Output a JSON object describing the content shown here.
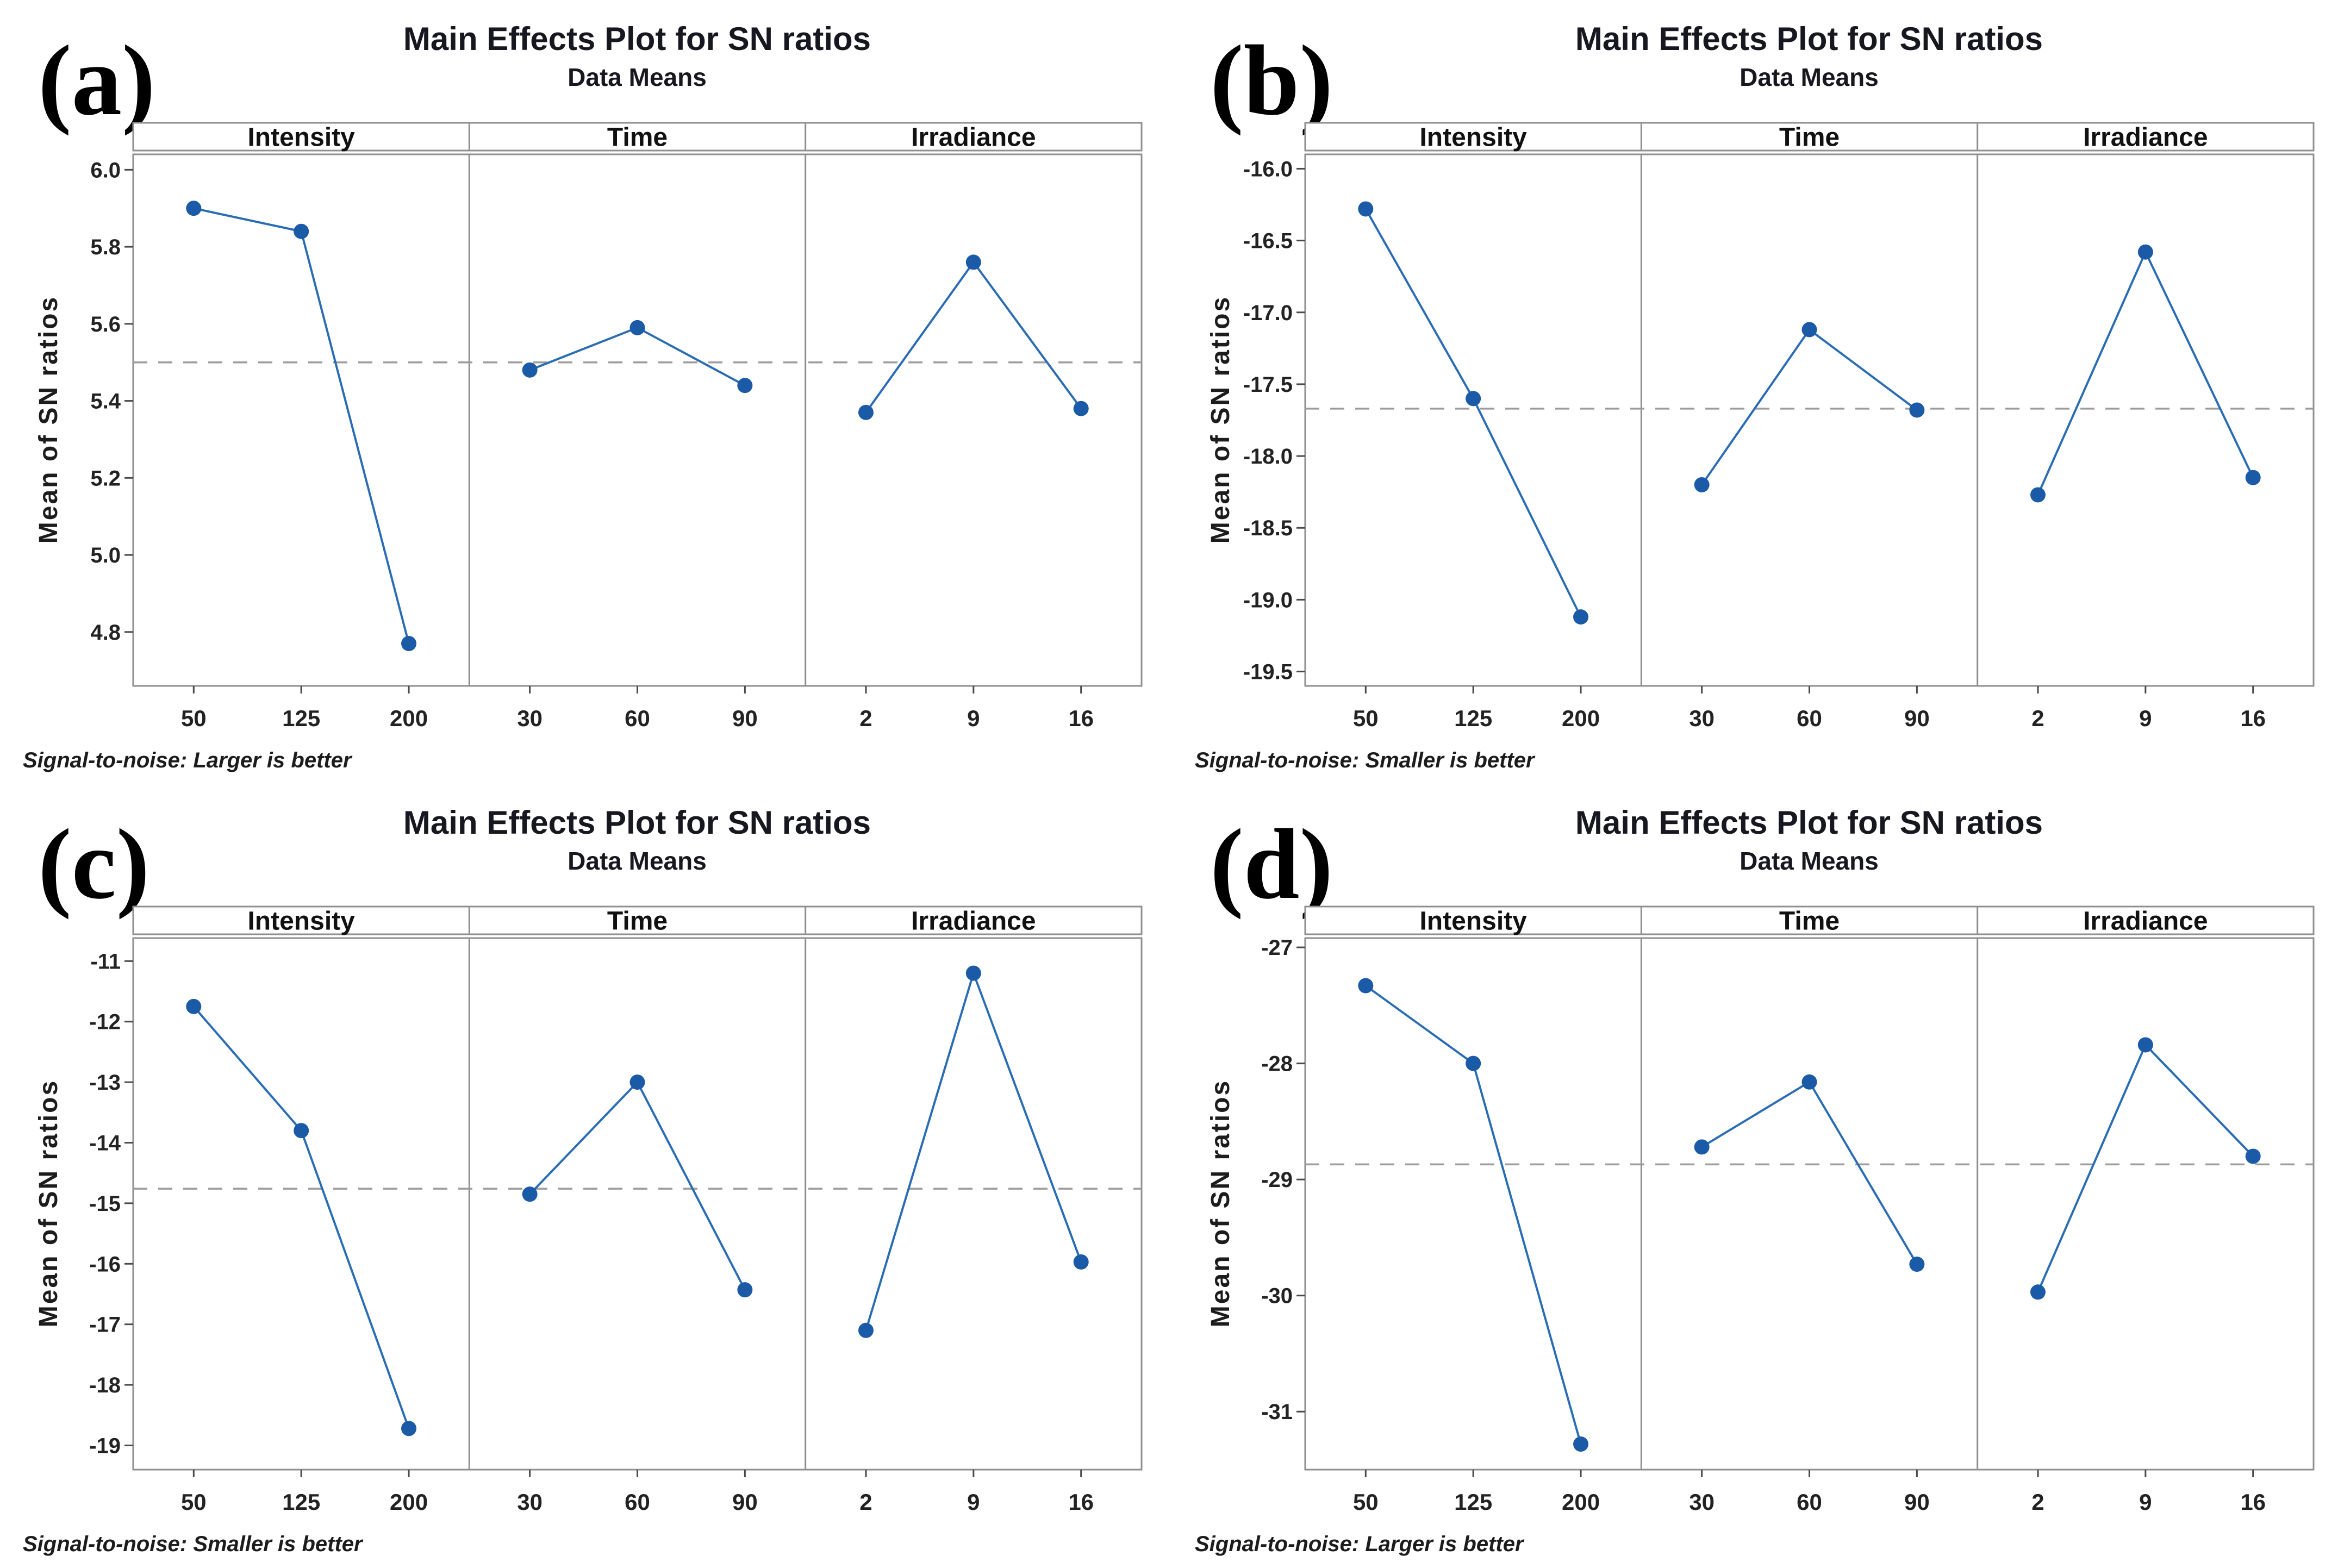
{
  "style": {
    "line_color": "#2a6db4",
    "marker_color": "#1a5aa6",
    "mean_line_color": "#9c9c9c",
    "frame_color": "#8f8f8f",
    "tick_color": "#4a4a4a",
    "text_color": "#1b1b22",
    "background": "#ffffff"
  },
  "chart_data": [
    {
      "label": "(a)",
      "type": "line",
      "title": "Main Effects Plot for SN ratios",
      "subtitle": "Data Means",
      "ylabel": "Mean of SN ratios",
      "footnote": "Signal-to-noise: Larger is better",
      "grid": false,
      "legend_position": "none",
      "mean_line": 5.5,
      "ylim": [
        4.66,
        6.04
      ],
      "yticks": [
        6.0,
        5.8,
        5.6,
        5.4,
        5.2,
        5.0,
        4.8
      ],
      "ytick_labels": [
        "6.0",
        "5.8",
        "5.6",
        "5.4",
        "5.2",
        "5.0",
        "4.8"
      ],
      "factors": [
        {
          "name": "Intensity",
          "categories": [
            "50",
            "125",
            "200"
          ],
          "values": [
            5.9,
            5.84,
            4.77
          ]
        },
        {
          "name": "Time",
          "categories": [
            "30",
            "60",
            "90"
          ],
          "values": [
            5.48,
            5.59,
            5.44
          ]
        },
        {
          "name": "Irradiance",
          "categories": [
            "2",
            "9",
            "16"
          ],
          "values": [
            5.37,
            5.76,
            5.38
          ]
        }
      ]
    },
    {
      "label": "(b)",
      "type": "line",
      "title": "Main Effects Plot for SN ratios",
      "subtitle": "Data Means",
      "ylabel": "Mean of SN ratios",
      "footnote": "Signal-to-noise: Smaller is better",
      "grid": false,
      "legend_position": "none",
      "mean_line": -17.67,
      "ylim": [
        -19.6,
        -15.9
      ],
      "yticks": [
        -16.0,
        -16.5,
        -17.0,
        -17.5,
        -18.0,
        -18.5,
        -19.0,
        -19.5
      ],
      "ytick_labels": [
        "-16.0",
        "-16.5",
        "-17.0",
        "-17.5",
        "-18.0",
        "-18.5",
        "-19.0",
        "-19.5"
      ],
      "factors": [
        {
          "name": "Intensity",
          "categories": [
            "50",
            "125",
            "200"
          ],
          "values": [
            -16.28,
            -17.6,
            -19.12
          ]
        },
        {
          "name": "Time",
          "categories": [
            "30",
            "60",
            "90"
          ],
          "values": [
            -18.2,
            -17.12,
            -17.68
          ]
        },
        {
          "name": "Irradiance",
          "categories": [
            "2",
            "9",
            "16"
          ],
          "values": [
            -18.27,
            -16.58,
            -18.15
          ]
        }
      ]
    },
    {
      "label": "(c)",
      "type": "line",
      "title": "Main Effects Plot for SN ratios",
      "subtitle": "Data Means",
      "ylabel": "Mean of SN ratios",
      "footnote": "Signal-to-noise: Smaller is better",
      "grid": false,
      "legend_position": "none",
      "mean_line": -14.76,
      "ylim": [
        -19.4,
        -10.62
      ],
      "yticks": [
        -11,
        -12,
        -13,
        -14,
        -15,
        -16,
        -17,
        -18,
        -19
      ],
      "ytick_labels": [
        "-11",
        "-12",
        "-13",
        "-14",
        "-15",
        "-16",
        "-17",
        "-18",
        "-19"
      ],
      "factors": [
        {
          "name": "Intensity",
          "categories": [
            "50",
            "125",
            "200"
          ],
          "values": [
            -11.75,
            -13.8,
            -18.72
          ]
        },
        {
          "name": "Time",
          "categories": [
            "30",
            "60",
            "90"
          ],
          "values": [
            -14.85,
            -13.0,
            -16.43
          ]
        },
        {
          "name": "Irradiance",
          "categories": [
            "2",
            "9",
            "16"
          ],
          "values": [
            -17.1,
            -11.2,
            -15.97
          ]
        }
      ]
    },
    {
      "label": "(d)",
      "type": "line",
      "title": "Main Effects Plot for SN ratios",
      "subtitle": "Data Means",
      "ylabel": "Mean of SN ratios",
      "footnote": "Signal-to-noise: Larger is better",
      "grid": false,
      "legend_position": "none",
      "mean_line": -28.87,
      "ylim": [
        -31.5,
        -26.92
      ],
      "yticks": [
        -27,
        -28,
        -29,
        -30,
        -31
      ],
      "ytick_labels": [
        "-27",
        "-28",
        "-29",
        "-30",
        "-31"
      ],
      "factors": [
        {
          "name": "Intensity",
          "categories": [
            "50",
            "125",
            "200"
          ],
          "values": [
            -27.33,
            -28.0,
            -31.28
          ]
        },
        {
          "name": "Time",
          "categories": [
            "30",
            "60",
            "90"
          ],
          "values": [
            -28.72,
            -28.16,
            -29.73
          ]
        },
        {
          "name": "Irradiance",
          "categories": [
            "2",
            "9",
            "16"
          ],
          "values": [
            -29.97,
            -27.84,
            -28.8
          ]
        }
      ]
    }
  ]
}
